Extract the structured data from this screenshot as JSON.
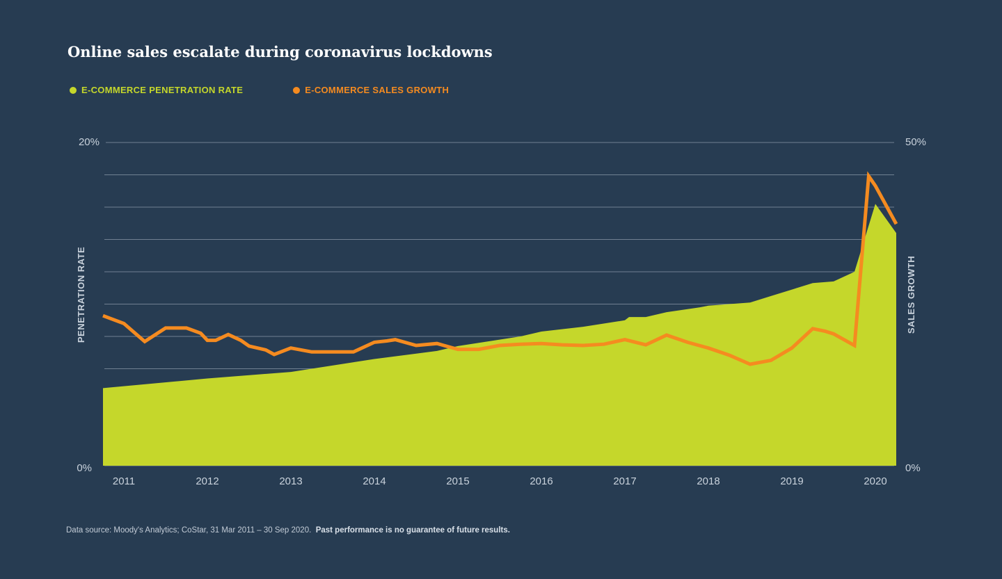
{
  "chart_data": {
    "type": "area",
    "title": "Online sales escalate during coronavirus lockdowns",
    "legend": [
      {
        "label": "E-COMMERCE PENETRATION RATE",
        "color": "#c5d72b"
      },
      {
        "label": "E-COMMERCE SALES GROWTH",
        "color": "#f58b20"
      }
    ],
    "y_left": {
      "label": "PENETRATION RATE",
      "ylim": [
        0,
        20
      ],
      "ticks": [
        "20%",
        "0%"
      ]
    },
    "y_right": {
      "label": "SALES GROWTH",
      "ylim": [
        0,
        50
      ],
      "ticks": [
        "50%",
        "0%"
      ]
    },
    "x_ticks": [
      "2011",
      "2012",
      "2013",
      "2014",
      "2015",
      "2016",
      "2017",
      "2018",
      "2019",
      "2020"
    ],
    "grid": true,
    "legend_position": "top-left",
    "series": [
      {
        "name": "E-COMMERCE PENETRATION RATE",
        "axis": "left",
        "chart_type": "area",
        "color": "#c5d72b",
        "x": [
          2010.75,
          2012.0,
          2013.0,
          2014.0,
          2014.75,
          2015.0,
          2015.75,
          2016.0,
          2016.5,
          2017.0,
          2017.05,
          2017.25,
          2017.5,
          2017.9,
          2018.0,
          2018.5,
          2018.75,
          2019.0,
          2019.25,
          2019.5,
          2019.75,
          2020.0,
          2020.25
        ],
        "values": [
          4.8,
          5.4,
          5.8,
          6.6,
          7.1,
          7.4,
          8.0,
          8.3,
          8.6,
          9.0,
          9.2,
          9.2,
          9.5,
          9.8,
          9.9,
          10.1,
          10.5,
          10.9,
          11.3,
          11.4,
          12.0,
          16.2,
          14.4
        ]
      },
      {
        "name": "E-COMMERCE SALES GROWTH",
        "axis": "right",
        "chart_type": "line",
        "color": "#f58b20",
        "x": [
          2010.75,
          2011.0,
          2011.25,
          2011.5,
          2011.75,
          2011.92,
          2012.0,
          2012.1,
          2012.25,
          2012.4,
          2012.5,
          2012.7,
          2012.8,
          2013.0,
          2013.25,
          2013.5,
          2013.75,
          2014.0,
          2014.15,
          2014.25,
          2014.5,
          2014.75,
          2015.0,
          2015.25,
          2015.5,
          2015.75,
          2016.0,
          2016.25,
          2016.5,
          2016.75,
          2017.0,
          2017.25,
          2017.5,
          2017.75,
          2018.0,
          2018.25,
          2018.5,
          2018.75,
          2019.0,
          2019.25,
          2019.4,
          2019.5,
          2019.75,
          2019.92,
          2020.0,
          2020.25
        ],
        "values": [
          23.2,
          22.0,
          19.2,
          21.3,
          21.3,
          20.5,
          19.4,
          19.4,
          20.3,
          19.4,
          18.5,
          17.9,
          17.2,
          18.2,
          17.6,
          17.6,
          17.6,
          19.1,
          19.3,
          19.5,
          18.6,
          18.9,
          18.0,
          18.0,
          18.6,
          18.8,
          18.9,
          18.7,
          18.6,
          18.8,
          19.5,
          18.7,
          20.2,
          19.1,
          18.2,
          17.1,
          15.7,
          16.3,
          18.2,
          21.2,
          20.8,
          20.4,
          18.6,
          44.8,
          43.3,
          37.4
        ]
      }
    ]
  }
}
